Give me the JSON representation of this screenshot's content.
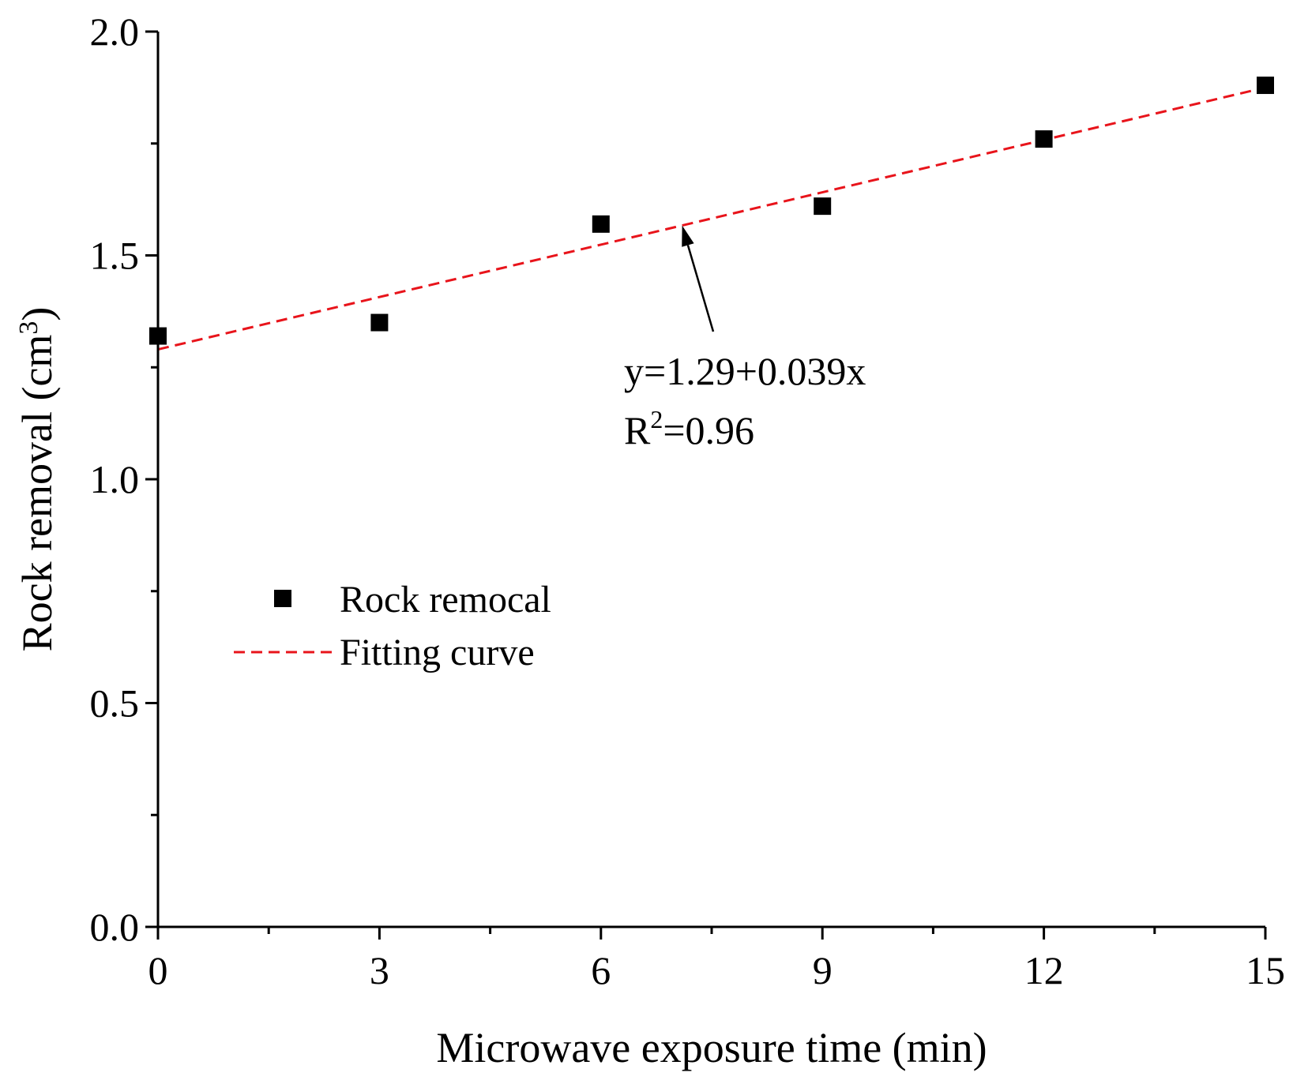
{
  "chart_data": {
    "type": "scatter",
    "title": "",
    "xlabel": "Microwave exposure time (min)",
    "ylabel_main": "Rock removal (cm",
    "ylabel_sup": "3",
    "ylabel_close": ")",
    "xlim": [
      0,
      15
    ],
    "ylim": [
      0,
      2
    ],
    "x_ticks": [
      0,
      3,
      6,
      9,
      12,
      15
    ],
    "x_tick_labels": [
      "0",
      "3",
      "6",
      "9",
      "12",
      "15"
    ],
    "x_minor_ticks": [
      1.5,
      4.5,
      7.5,
      10.5,
      13.5
    ],
    "y_ticks": [
      0,
      0.5,
      1,
      1.5,
      2
    ],
    "y_tick_labels": [
      "0.0",
      "0.5",
      "1.0",
      "1.5",
      "2.0"
    ],
    "y_minor_ticks": [
      0.25,
      0.75,
      1.25,
      1.75
    ],
    "grid": false,
    "series": [
      {
        "name": "Rock remocal",
        "kind": "scatter",
        "marker": "square",
        "color": "#000000",
        "x": [
          0,
          3,
          6,
          9,
          12,
          15
        ],
        "y": [
          1.32,
          1.35,
          1.57,
          1.61,
          1.76,
          1.88
        ]
      },
      {
        "name": "Fitting curve",
        "kind": "line",
        "style": "dashed",
        "color": "#e8141b",
        "intercept": 1.29,
        "slope": 0.039
      }
    ],
    "legend": {
      "placement": "center-left",
      "items": [
        "Rock remocal",
        "Fitting curve"
      ]
    },
    "annotation": {
      "equation": "y=1.29+0.039x",
      "r2_prefix": "R",
      "r2_sup": "2",
      "r2_value": "=0.96",
      "arrow_target_x": 7.1
    }
  }
}
